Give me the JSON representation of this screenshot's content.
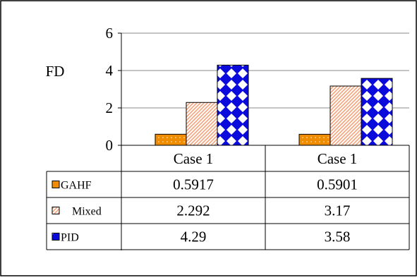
{
  "chart_data": {
    "type": "bar",
    "ylabel": "FD",
    "ylim": [
      0,
      6
    ],
    "yticks": [
      0,
      2,
      4,
      6
    ],
    "grid": true,
    "legend_position": "table-left",
    "categories": [
      "Case 1",
      "Case 1"
    ],
    "series": [
      {
        "name": "GAHF",
        "values": [
          0.5917,
          0.5901
        ],
        "labels": [
          "0.5917",
          "0.5901"
        ],
        "color": "#f08c00",
        "pattern": "dots"
      },
      {
        "name": "Mixed",
        "values": [
          2.292,
          3.17
        ],
        "labels": [
          "2.292",
          "3.17"
        ],
        "color": "#f4a37b",
        "pattern": "diagonal"
      },
      {
        "name": "PID",
        "values": [
          4.29,
          3.58
        ],
        "labels": [
          "4.29",
          "3.58"
        ],
        "color": "#0a0adc",
        "pattern": "diamonds"
      }
    ]
  }
}
